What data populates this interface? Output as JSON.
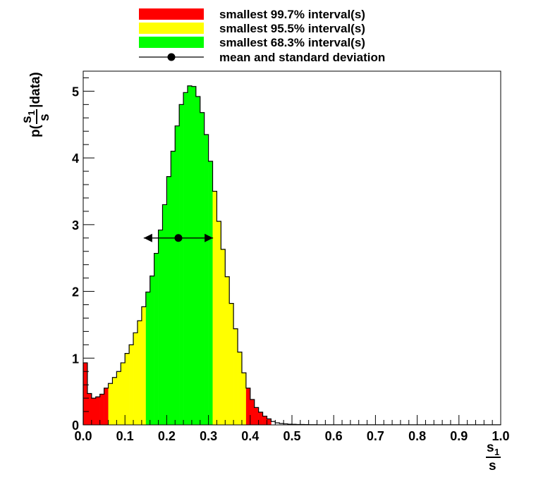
{
  "chart_data": {
    "type": "bar",
    "xlim": [
      0.0,
      1.0
    ],
    "ylim": [
      0,
      5.3
    ],
    "bin_width": 0.01,
    "x_ticks": [
      "0.0",
      "0.1",
      "0.2",
      "0.3",
      "0.4",
      "0.5",
      "0.6",
      "0.7",
      "0.8",
      "0.9",
      "1.0"
    ],
    "y_ticks": [
      "0",
      "1",
      "2",
      "3",
      "4",
      "5"
    ],
    "xlabel": {
      "numerator": "s",
      "numerator_sub": "1",
      "denominator": "s"
    },
    "ylabel": {
      "prefix": "p(",
      "numerator": "s",
      "numerator_sub": "1",
      "denominator": "s",
      "suffix": "|data)"
    },
    "values": [
      0.93,
      0.47,
      0.4,
      0.42,
      0.46,
      0.55,
      0.62,
      0.71,
      0.8,
      0.93,
      1.07,
      1.2,
      1.38,
      1.56,
      1.77,
      1.99,
      2.23,
      2.57,
      2.92,
      3.3,
      3.72,
      4.1,
      4.48,
      4.8,
      4.98,
      5.08,
      5.07,
      4.92,
      4.68,
      4.35,
      3.95,
      3.5,
      3.05,
      2.63,
      2.22,
      1.82,
      1.44,
      1.09,
      0.78,
      0.55,
      0.38,
      0.26,
      0.19,
      0.13,
      0.09,
      0.05,
      0.03,
      0.02,
      0.015,
      0.01,
      0.008,
      0.006,
      0.005,
      0.004,
      0.003,
      0.003,
      0.002,
      0.002,
      0.002,
      0.001,
      0.001,
      0.001,
      0.001,
      0.001,
      0.001,
      0.001,
      0.001,
      0.001,
      0.001,
      0.001,
      0.001,
      0.001,
      0.001,
      0.001,
      0.001,
      0.001,
      0.001,
      0.001,
      0.001,
      0.001,
      0.001,
      0.001,
      0.001,
      0.001,
      0.001,
      0.001,
      0.001,
      0.001,
      0.001,
      0.001,
      0.001,
      0.001,
      0.001,
      0.001,
      0.001,
      0.001,
      0.001,
      0.001,
      0.001,
      0.001
    ],
    "intervals": [
      {
        "label": "smallest 99.7% interval(s)",
        "color": "#ff0000",
        "range": [
          0.0,
          0.45
        ]
      },
      {
        "label": "smallest 95.5% interval(s)",
        "color": "#ffff00",
        "range": [
          0.06,
          0.39
        ]
      },
      {
        "label": "smallest 68.3% interval(s)",
        "color": "#00ff00",
        "range": [
          0.15,
          0.31
        ]
      }
    ],
    "mean_std": {
      "label": "mean and standard deviation",
      "mean": 0.228,
      "std": 0.083,
      "y": 2.8
    }
  }
}
